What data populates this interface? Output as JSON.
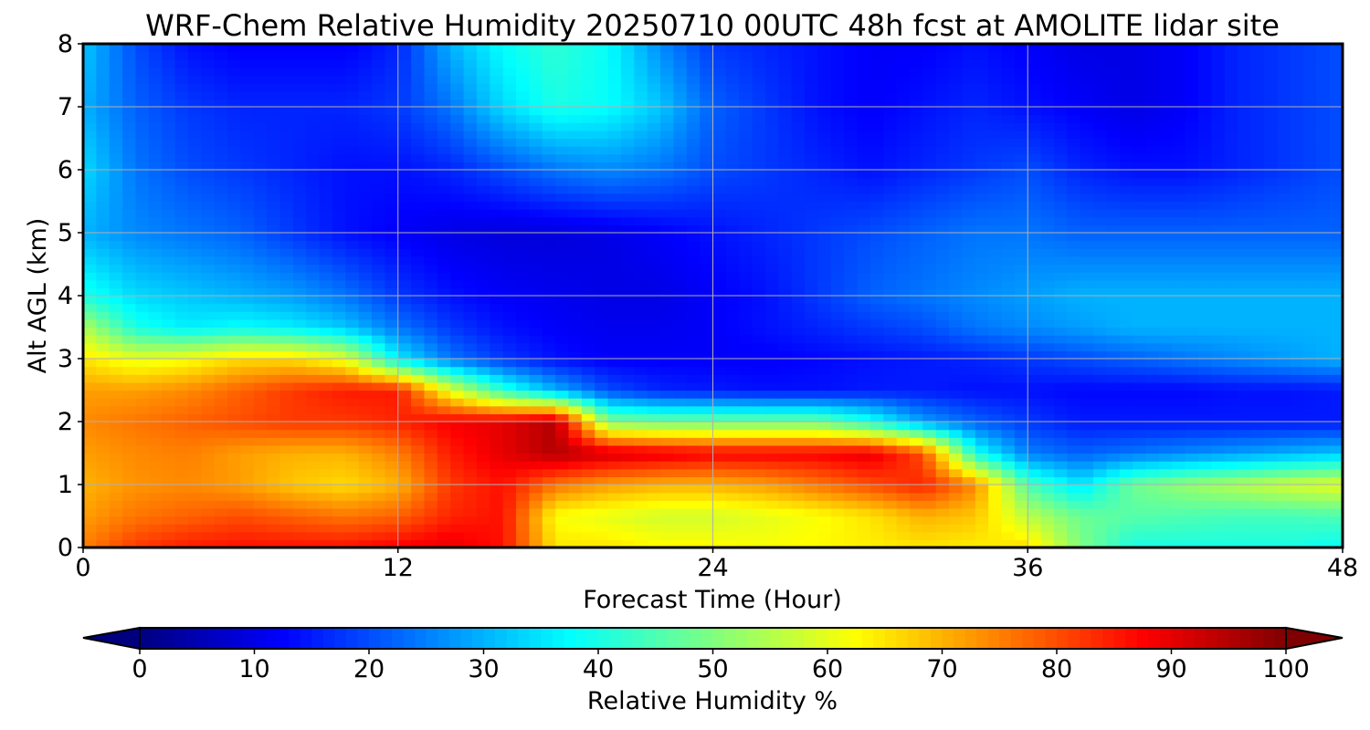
{
  "chart_data": {
    "type": "heatmap",
    "title": "WRF-Chem Relative Humidity 20250710 00UTC 48h fcst at AMOLITE lidar site",
    "xlabel": "Forecast Time (Hour)",
    "ylabel": "Alt AGL (km)",
    "xlim": [
      0,
      48
    ],
    "ylim": [
      0,
      8
    ],
    "x_ticks": [
      "0",
      "12",
      "24",
      "36",
      "48"
    ],
    "y_ticks": [
      "0",
      "1",
      "2",
      "3",
      "4",
      "5",
      "6",
      "7",
      "8"
    ],
    "grid": true,
    "colormap": "jet",
    "colorbar": {
      "label": "Relative Humidity %",
      "ticks": [
        "0",
        "10",
        "20",
        "30",
        "40",
        "50",
        "60",
        "70",
        "80",
        "90",
        "100"
      ],
      "range": [
        0,
        100
      ],
      "extend": "both"
    },
    "x": [
      0,
      2,
      4,
      6,
      8,
      10,
      12,
      14,
      16,
      18,
      20,
      22,
      24,
      26,
      28,
      30,
      32,
      34,
      36,
      38,
      40,
      42,
      44,
      46,
      48
    ],
    "y": [
      0,
      0.5,
      1,
      1.5,
      2,
      2.5,
      3,
      3.5,
      4,
      5,
      6,
      7,
      8
    ],
    "rh": [
      [
        75,
        82,
        85,
        86,
        86,
        86,
        88,
        90,
        86,
        65,
        65,
        63,
        63,
        62,
        63,
        64,
        65,
        64,
        66,
        50,
        40,
        40,
        40,
        40,
        38
      ],
      [
        72,
        76,
        78,
        80,
        78,
        76,
        78,
        84,
        86,
        62,
        60,
        58,
        58,
        60,
        62,
        65,
        70,
        68,
        56,
        48,
        46,
        45,
        44,
        44,
        45
      ],
      [
        70,
        73,
        74,
        72,
        68,
        66,
        70,
        82,
        86,
        76,
        72,
        70,
        70,
        72,
        76,
        80,
        84,
        74,
        45,
        35,
        48,
        52,
        55,
        58,
        60
      ],
      [
        72,
        74,
        75,
        72,
        70,
        70,
        75,
        85,
        90,
        95,
        92,
        90,
        88,
        88,
        88,
        90,
        80,
        40,
        25,
        22,
        24,
        26,
        28,
        30,
        32
      ],
      [
        74,
        76,
        78,
        80,
        82,
        82,
        84,
        88,
        90,
        95,
        50,
        48,
        48,
        48,
        48,
        40,
        28,
        22,
        18,
        15,
        15,
        15,
        15,
        15,
        15
      ],
      [
        72,
        72,
        74,
        78,
        82,
        85,
        85,
        60,
        42,
        30,
        20,
        16,
        15,
        14,
        14,
        15,
        15,
        14,
        14,
        13,
        13,
        13,
        14,
        14,
        15
      ],
      [
        65,
        60,
        62,
        66,
        66,
        60,
        36,
        24,
        18,
        14,
        12,
        12,
        12,
        12,
        13,
        14,
        15,
        16,
        18,
        20,
        22,
        24,
        26,
        28,
        30
      ],
      [
        55,
        40,
        36,
        38,
        36,
        32,
        24,
        18,
        14,
        12,
        11,
        11,
        12,
        14,
        16,
        18,
        20,
        24,
        26,
        28,
        30,
        30,
        30,
        30,
        30
      ],
      [
        40,
        34,
        32,
        30,
        28,
        24,
        18,
        14,
        12,
        11,
        10,
        10,
        12,
        14,
        18,
        22,
        24,
        26,
        28,
        30,
        30,
        30,
        30,
        30,
        30
      ],
      [
        30,
        26,
        24,
        22,
        18,
        14,
        12,
        10,
        9,
        9,
        10,
        12,
        14,
        16,
        18,
        20,
        22,
        24,
        24,
        22,
        22,
        22,
        22,
        22,
        22
      ],
      [
        34,
        24,
        20,
        18,
        16,
        14,
        14,
        16,
        20,
        24,
        26,
        24,
        20,
        18,
        16,
        14,
        16,
        18,
        20,
        16,
        14,
        14,
        16,
        18,
        20
      ],
      [
        30,
        22,
        18,
        16,
        16,
        16,
        18,
        24,
        34,
        40,
        38,
        32,
        22,
        18,
        14,
        12,
        14,
        16,
        14,
        12,
        10,
        12,
        16,
        18,
        20
      ],
      [
        32,
        20,
        14,
        12,
        12,
        12,
        16,
        30,
        38,
        42,
        38,
        26,
        18,
        16,
        14,
        12,
        12,
        14,
        12,
        10,
        10,
        12,
        16,
        18,
        20
      ]
    ]
  }
}
